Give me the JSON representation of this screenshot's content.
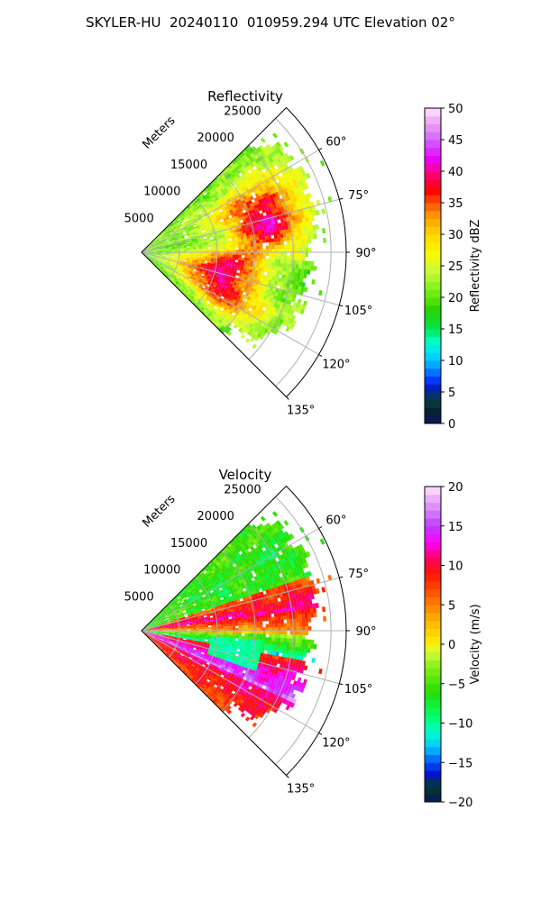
{
  "figure": {
    "suptitle": "SKYLER-HU  20240110  010959.294 UTC Elevation 02°"
  },
  "chart_data": [
    {
      "type": "heatmap",
      "projection": "polar-sector",
      "title": "Reflectivity",
      "radial_axis_label": "Meters",
      "radial_ticks": [
        5000,
        10000,
        15000,
        20000,
        25000
      ],
      "radial_tick_labels": [
        "5000",
        "10000",
        "15000",
        "20000",
        "25000"
      ],
      "rmax": 27000,
      "theta_ticks": [
        60,
        75,
        90,
        105,
        120,
        135
      ],
      "theta_tick_labels": [
        "60°",
        "75°",
        "90°",
        "105°",
        "120°",
        "135°"
      ],
      "theta_range_deg": [
        45,
        135
      ],
      "grid": true,
      "colorbar": {
        "label": "Reflectivity dBZ",
        "range": [
          0,
          50
        ],
        "ticks": [
          0,
          5,
          10,
          15,
          20,
          25,
          30,
          35,
          40,
          45,
          50
        ],
        "tick_labels": [
          "0",
          "5",
          "10",
          "15",
          "20",
          "25",
          "30",
          "35",
          "40",
          "45",
          "50"
        ],
        "levels": 40
      },
      "field_features": [
        {
          "azimuth_deg": 60,
          "range_m": [
            9000,
            23500
          ],
          "value": 26
        },
        {
          "azimuth_deg": 68,
          "range_m": [
            12000,
            21000
          ],
          "value": 34
        },
        {
          "azimuth_deg": 80,
          "range_m": [
            14000,
            20000
          ],
          "value": 40
        },
        {
          "azimuth_deg": 95,
          "range_m": [
            9000,
            15000
          ],
          "value": 36
        },
        {
          "azimuth_deg": 105,
          "range_m": [
            6000,
            14000
          ],
          "value": 37
        },
        {
          "azimuth_deg": 118,
          "range_m": [
            8000,
            16000
          ],
          "value": 38
        }
      ]
    },
    {
      "type": "heatmap",
      "projection": "polar-sector",
      "title": "Velocity",
      "radial_axis_label": "Meters",
      "radial_ticks": [
        5000,
        10000,
        15000,
        20000,
        25000
      ],
      "radial_tick_labels": [
        "5000",
        "10000",
        "15000",
        "20000",
        "25000"
      ],
      "rmax": 27000,
      "theta_ticks": [
        60,
        75,
        90,
        105,
        120,
        135
      ],
      "theta_tick_labels": [
        "60°",
        "75°",
        "90°",
        "105°",
        "120°",
        "135°"
      ],
      "theta_range_deg": [
        45,
        135
      ],
      "grid": true,
      "colorbar": {
        "label": "Velocity (m/s)",
        "range": [
          -20,
          20
        ],
        "ticks": [
          -20,
          -15,
          -10,
          -5,
          0,
          5,
          10,
          15,
          20
        ],
        "tick_labels": [
          "−20",
          "−15",
          "−10",
          "−5",
          "0",
          "5",
          "10",
          "15",
          "20"
        ],
        "levels": 40
      },
      "field_features": [
        {
          "azimuth_deg": 58,
          "range_m": [
            5000,
            24000
          ],
          "value": -6
        },
        {
          "azimuth_deg": 80,
          "range_m": [
            2000,
            22000
          ],
          "value": 11
        },
        {
          "azimuth_deg": 90,
          "range_m": [
            2000,
            23000
          ],
          "value": 4
        },
        {
          "azimuth_deg": 98,
          "range_m": [
            3000,
            20000
          ],
          "value": -10
        },
        {
          "azimuth_deg": 108,
          "range_m": [
            3000,
            16000
          ],
          "value": 15
        },
        {
          "azimuth_deg": 125,
          "range_m": [
            6000,
            20000
          ],
          "value": 9
        }
      ]
    }
  ]
}
